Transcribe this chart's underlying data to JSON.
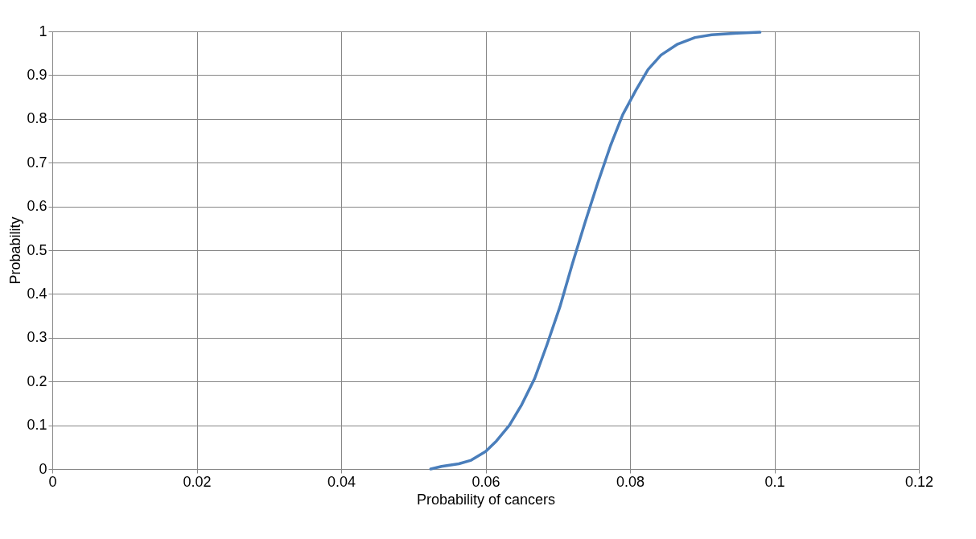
{
  "chart_data": {
    "type": "line",
    "xlabel": "Probability of cancers",
    "ylabel": "Probability",
    "x": [
      0.0524,
      0.0539,
      0.0563,
      0.058,
      0.06,
      0.0615,
      0.0633,
      0.065,
      0.0668,
      0.0685,
      0.0703,
      0.072,
      0.0738,
      0.0755,
      0.0773,
      0.079,
      0.0808,
      0.0825,
      0.0843,
      0.0866,
      0.089,
      0.0913,
      0.0948,
      0.098
    ],
    "series": [
      {
        "color": "#4a7ebb",
        "values": [
          0,
          0.006,
          0.012,
          0.02,
          0.04,
          0.064,
          0.1,
          0.147,
          0.207,
          0.284,
          0.371,
          0.468,
          0.565,
          0.652,
          0.739,
          0.81,
          0.865,
          0.913,
          0.946,
          0.971,
          0.986,
          0.992,
          0.996,
          0.998
        ]
      }
    ],
    "xlim": [
      0,
      0.12
    ],
    "xticks": [
      0,
      0.02,
      0.04,
      0.06,
      0.08,
      0.1,
      0.12
    ],
    "ylim": [
      0,
      1
    ],
    "yticks": [
      0,
      0.1,
      0.2,
      0.3,
      0.4,
      0.5,
      0.6,
      0.7,
      0.8,
      0.9,
      1
    ],
    "grid": true,
    "marker": "none",
    "line_style": "solid"
  }
}
